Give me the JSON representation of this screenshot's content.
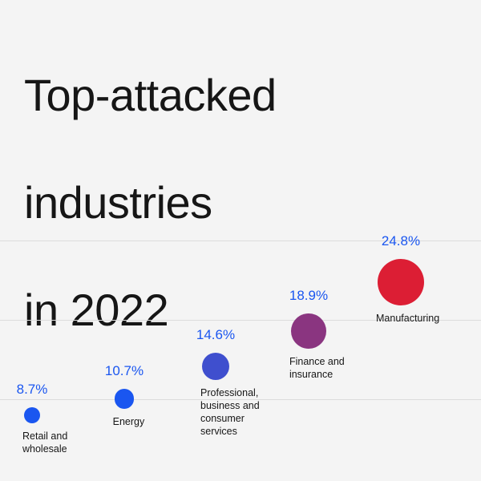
{
  "title_lines": [
    "Top-attacked",
    "industries",
    "in 2022"
  ],
  "chart_data": {
    "type": "scatter",
    "title": "Top-attacked industries in 2022",
    "categories": [
      "Retail and wholesale",
      "Energy",
      "Professional, business and consumer services",
      "Finance and insurance",
      "Manufacturing"
    ],
    "category_label_lines": [
      [
        "Retail and",
        "wholesale"
      ],
      [
        "Energy"
      ],
      [
        "Professional,",
        "business and",
        "consumer",
        "services"
      ],
      [
        "Finance and",
        "insurance"
      ],
      [
        "Manufacturing"
      ]
    ],
    "values": [
      8.7,
      10.7,
      14.6,
      18.9,
      24.8
    ],
    "value_labels": [
      "8.7%",
      "10.7%",
      "14.6%",
      "18.9%",
      "24.8%"
    ],
    "colors": [
      "#1a56f0",
      "#1a56f0",
      "#3f4fce",
      "#8a3580",
      "#dc1e34"
    ],
    "y_unit": "%",
    "grid": true,
    "legend": "none"
  }
}
